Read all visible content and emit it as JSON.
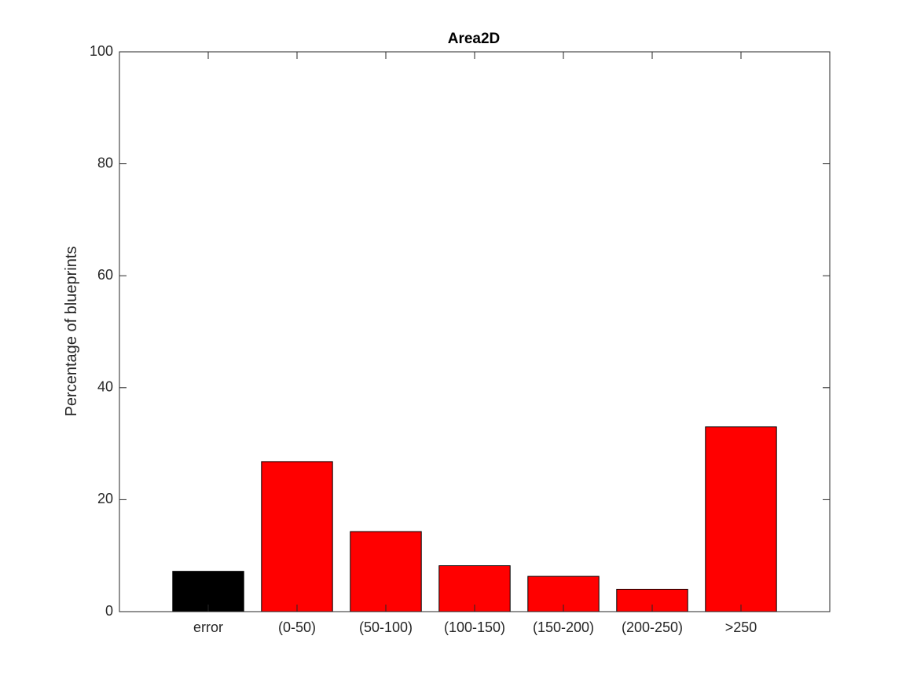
{
  "chart_data": {
    "type": "bar",
    "title": "Area2D",
    "xlabel": "",
    "ylabel": "Percentage of blueprints",
    "categories": [
      "error",
      "(0-50)",
      "(50-100)",
      "(100-150)",
      "(150-200)",
      "(200-250)",
      ">250"
    ],
    "values": [
      7.2,
      26.8,
      14.3,
      8.2,
      6.3,
      4.0,
      33.0
    ],
    "bar_colors": [
      "#000000",
      "#ff0000",
      "#ff0000",
      "#ff0000",
      "#ff0000",
      "#ff0000",
      "#ff0000"
    ],
    "x_range": [
      0,
      8
    ],
    "ylim": [
      0,
      100
    ],
    "yticks": [
      0,
      20,
      40,
      60,
      80,
      100
    ],
    "grid": false,
    "legend": "none"
  }
}
